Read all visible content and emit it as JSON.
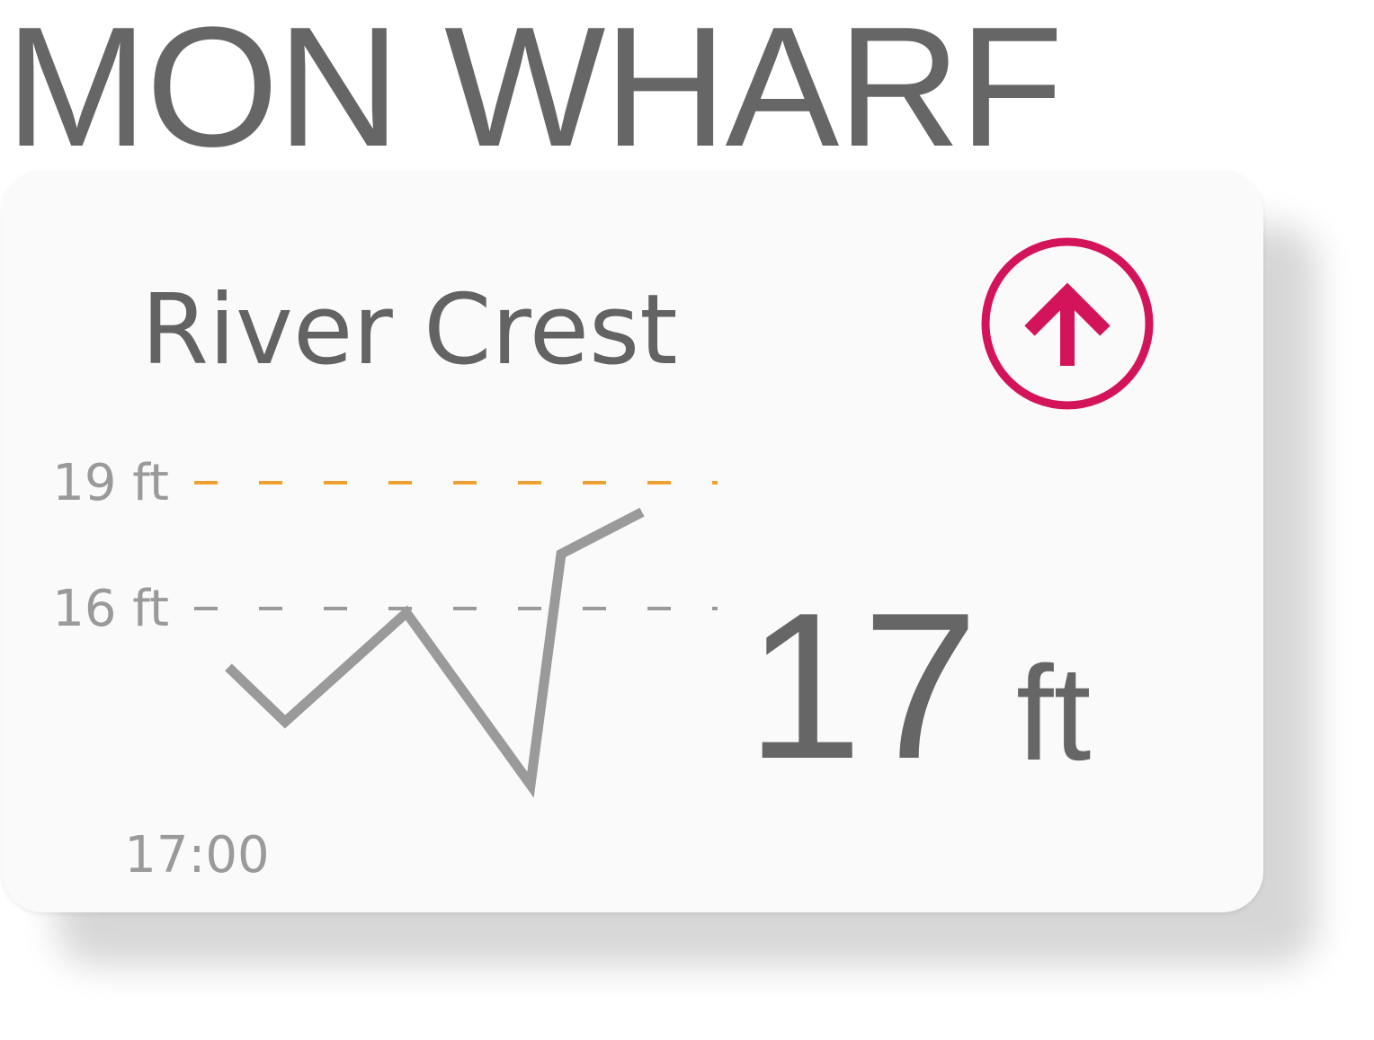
{
  "location": {
    "title": "MON WHARF"
  },
  "gauge": {
    "station_name": "River Crest",
    "trend_icon": "arrow-up-circle-icon",
    "trend_color": "#d4145a",
    "current_value": "17",
    "current_unit": "ft"
  },
  "colors": {
    "alert_line": "#f0a030",
    "reference_line": "#9a9a9a",
    "series_line": "#9a9a9a",
    "text_primary": "#666666",
    "text_muted": "#9a9a9a"
  },
  "chart_data": {
    "type": "line",
    "ylim": [
      11.5,
      19.5
    ],
    "y_ticks": [
      {
        "value": 19,
        "label": "19 ft",
        "style": "alert"
      },
      {
        "value": 16,
        "label": "16 ft",
        "style": "reference"
      }
    ],
    "x_label": "17:00",
    "series": [
      {
        "values": [
          14.6,
          13.3,
          15.9,
          11.8,
          17.3,
          18.3
        ]
      }
    ]
  }
}
